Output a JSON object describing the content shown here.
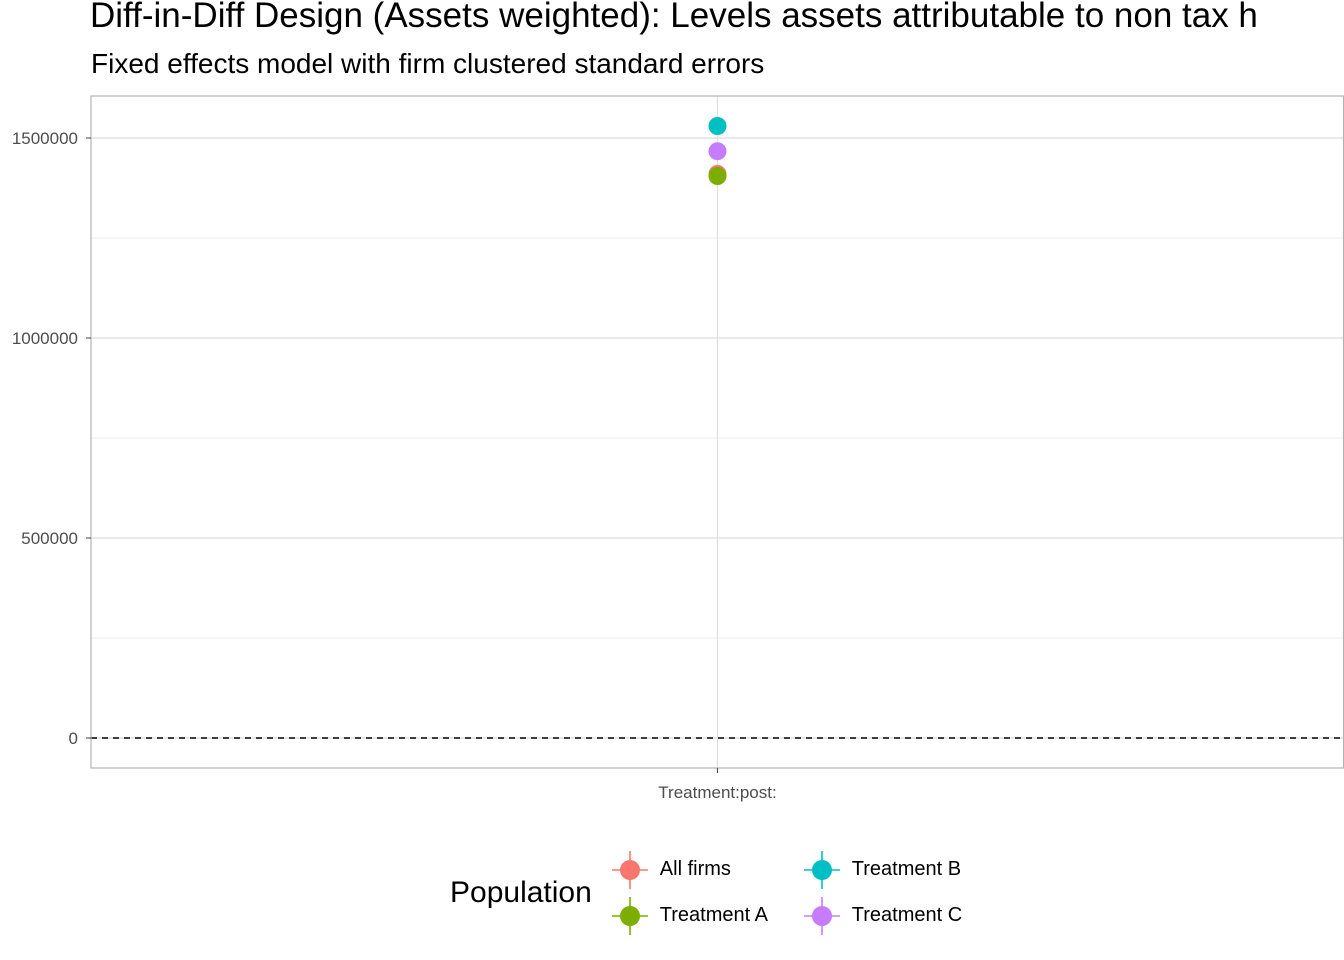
{
  "chart_data": {
    "type": "scatter",
    "title": "Diff-in-Diff Design (Assets weighted): Levels assets attributable to non tax h",
    "subtitle": "Fixed effects model with firm clustered standard errors",
    "xlabel": "",
    "ylabel": "",
    "categories": [
      "Treatment:post:"
    ],
    "ylim": [
      -75000,
      1605000
    ],
    "y_ticks": [
      0,
      500000,
      1000000,
      1500000
    ],
    "y_tick_labels": [
      "0",
      "500000",
      "1000000",
      "1500000"
    ],
    "reference_line": {
      "y": 0,
      "style": "dashed"
    },
    "grid": true,
    "legend": {
      "title": "Population",
      "position": "bottom"
    },
    "series": [
      {
        "name": "All firms",
        "color": "#F8766D",
        "values": [
          1410000
        ],
        "error_low": [
          1410000
        ],
        "error_high": [
          1410000
        ]
      },
      {
        "name": "Treatment A",
        "color": "#7CAE00",
        "values": [
          1405000
        ],
        "error_low": [
          1405000
        ],
        "error_high": [
          1405000
        ]
      },
      {
        "name": "Treatment B",
        "color": "#00BFC4",
        "values": [
          1530000
        ],
        "error_low": [
          1530000
        ],
        "error_high": [
          1530000
        ]
      },
      {
        "name": "Treatment C",
        "color": "#C77CFF",
        "values": [
          1467000
        ],
        "error_low": [
          1467000
        ],
        "error_high": [
          1467000
        ]
      }
    ]
  }
}
